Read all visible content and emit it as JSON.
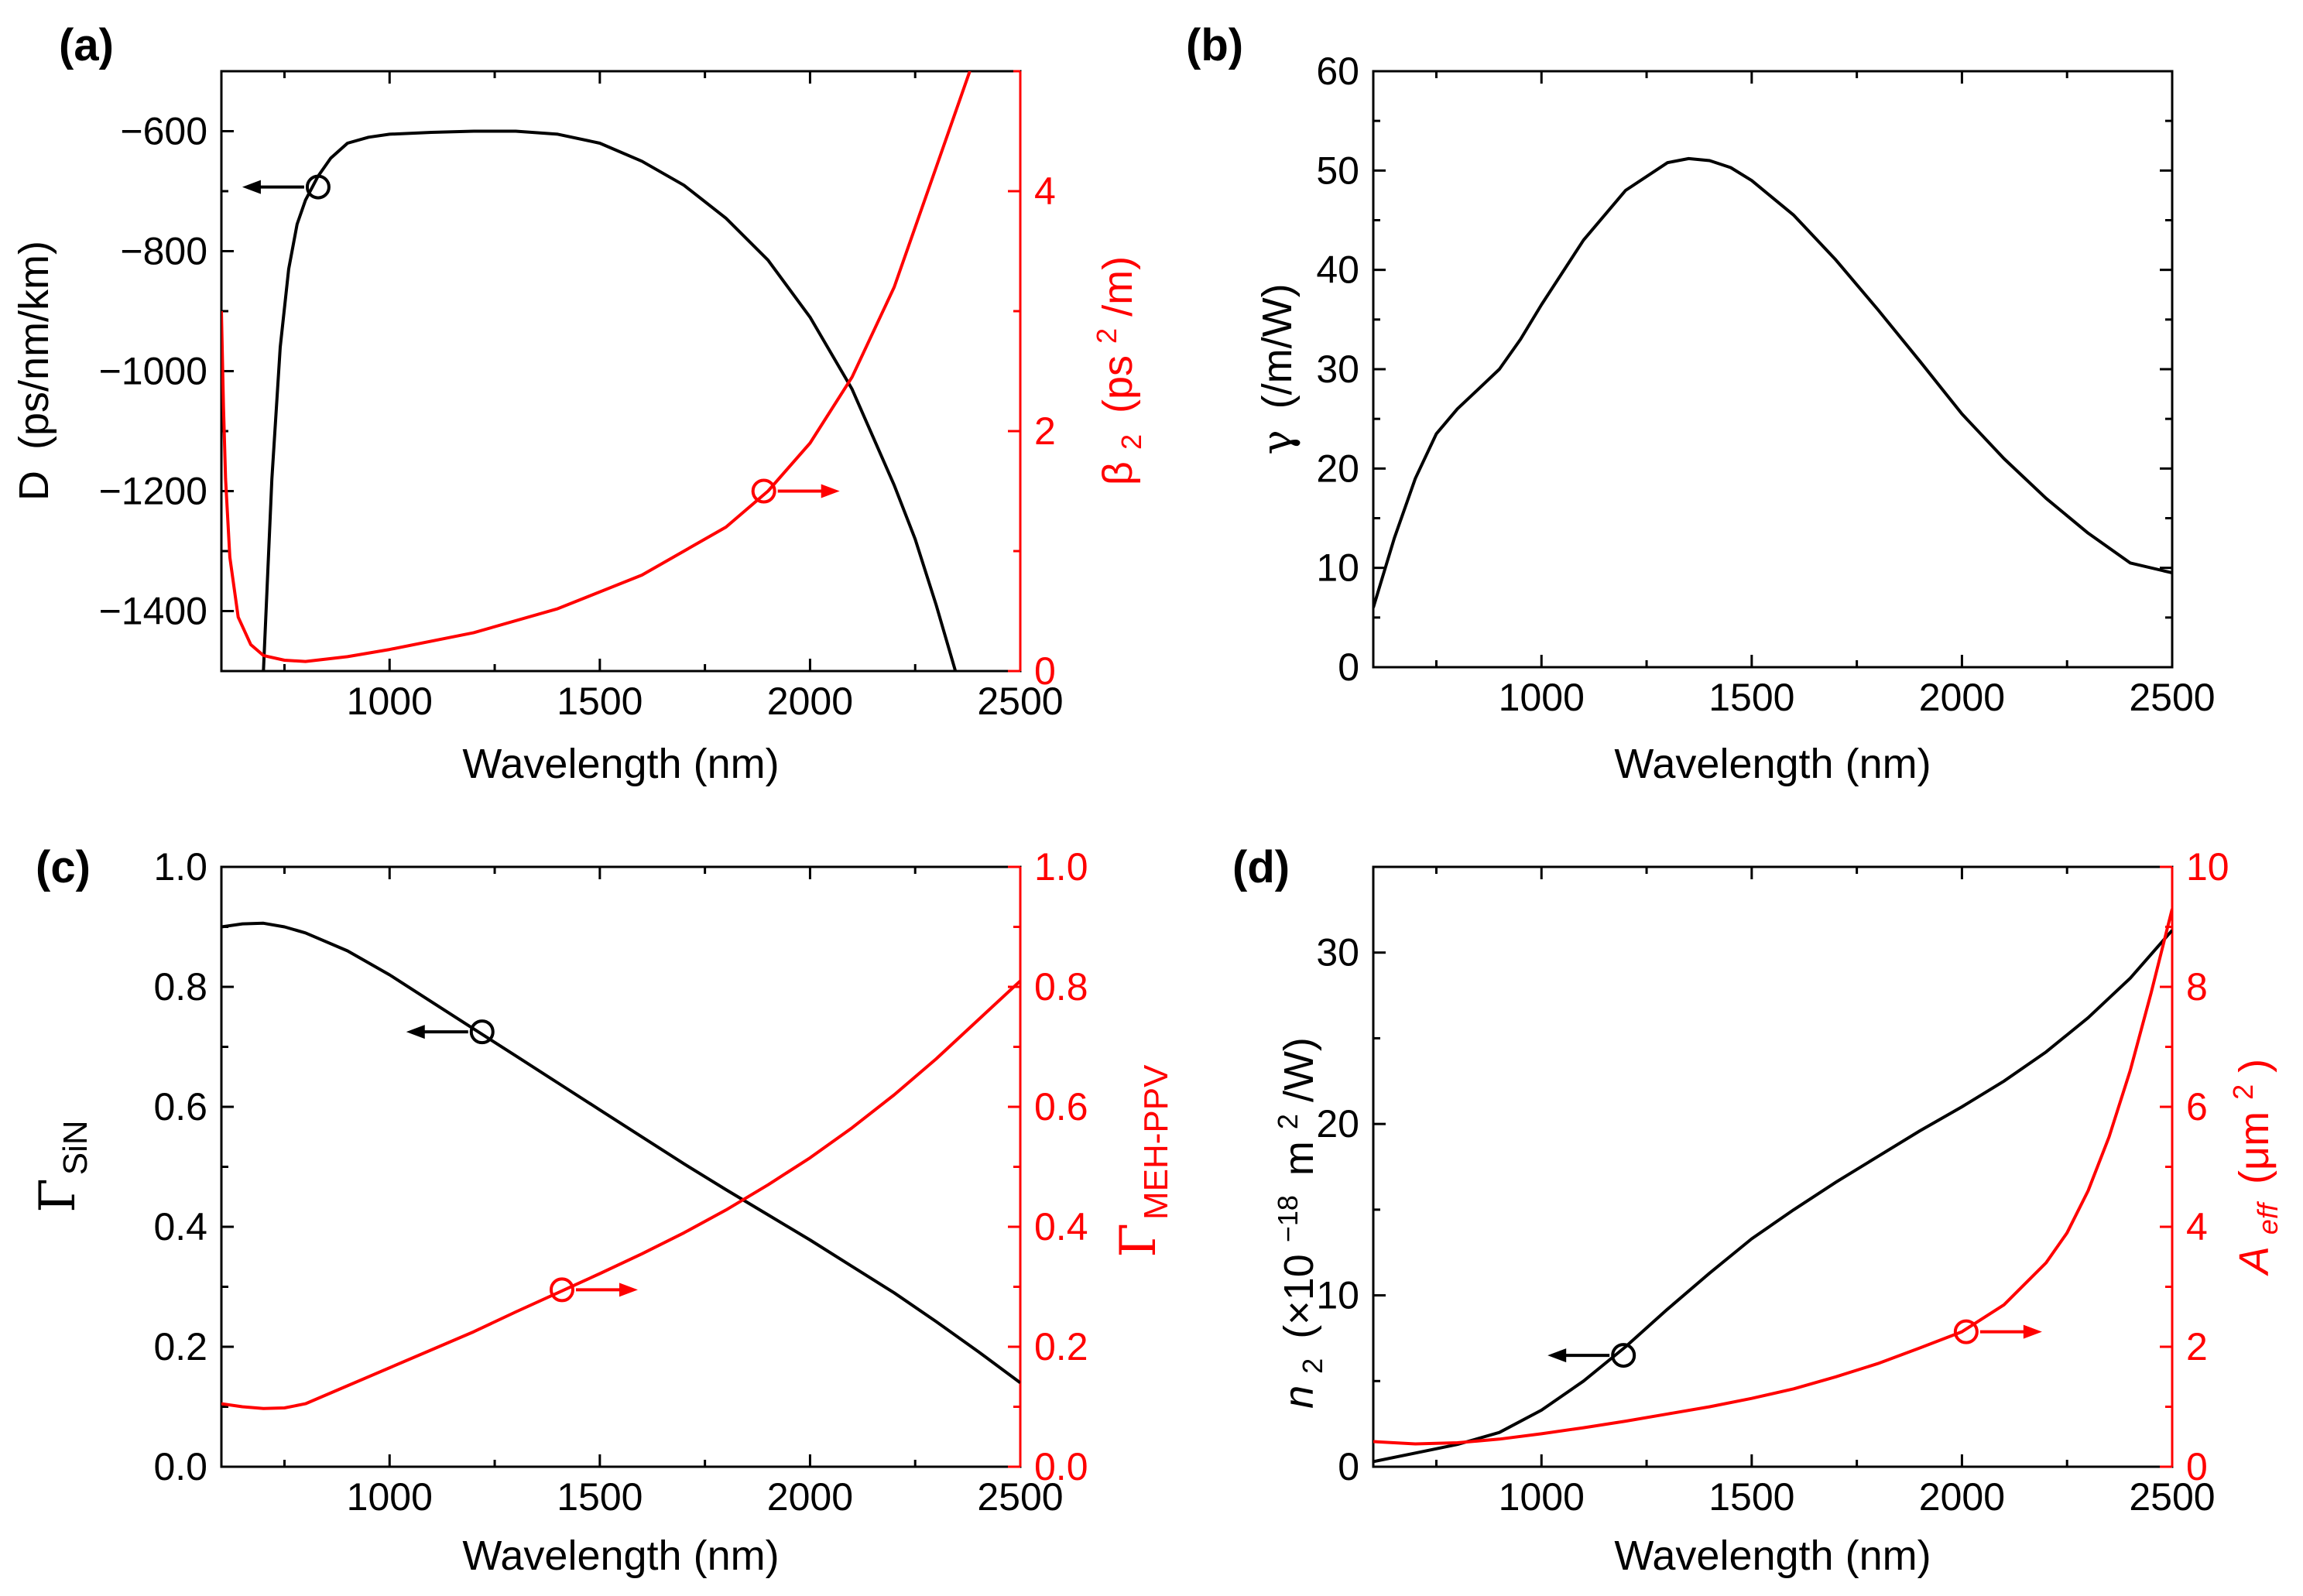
{
  "colors": {
    "primary": "#000000",
    "secondary": "#ff0000"
  },
  "chart_data": [
    {
      "id": "a",
      "panel_label": "(a)",
      "type": "line",
      "xlabel": "Wavelength (nm)",
      "xlim": [
        600,
        2500
      ],
      "xticks": [
        1000,
        1500,
        2000,
        2500
      ],
      "ylabel": "D (ps/nm/km)",
      "ylabel_main": "D",
      "ylabel_rest": "(ps/nm/km)",
      "ylim": [
        -1500,
        -500
      ],
      "yticks": [
        -1400,
        -1200,
        -1000,
        -800,
        -600
      ],
      "ytick_labels": [
        "−1400",
        "−1200",
        "−1000",
        "−800",
        "−600"
      ],
      "y2label": "β₂ (ps²/m)",
      "y2label_main": "β",
      "y2label_sub": "2",
      "y2label_mid": "(ps",
      "y2label_sup": "2",
      "y2label_end": "/m)",
      "y2lim": [
        0,
        5
      ],
      "y2ticks": [
        0,
        2,
        4
      ],
      "series": [
        {
          "name": "D",
          "axis": "left",
          "color": "#000000",
          "x": [
            700,
            720,
            740,
            760,
            780,
            800,
            830,
            860,
            900,
            950,
            1000,
            1100,
            1200,
            1300,
            1400,
            1500,
            1600,
            1700,
            1800,
            1900,
            2000,
            2100,
            2200,
            2250,
            2300,
            2350
          ],
          "y": [
            -1500,
            -1180,
            -960,
            -830,
            -755,
            -715,
            -675,
            -645,
            -620,
            -610,
            -605,
            -602,
            -600,
            -600,
            -605,
            -620,
            -650,
            -690,
            -745,
            -815,
            -910,
            -1030,
            -1190,
            -1280,
            -1390,
            -1510
          ],
          "marker_x": 830,
          "marker_y": -693,
          "arrow": "left"
        },
        {
          "name": "β2",
          "axis": "right",
          "color": "#ff0000",
          "x": [
            600,
            605,
            610,
            620,
            640,
            670,
            700,
            750,
            800,
            900,
            1000,
            1200,
            1400,
            1600,
            1800,
            1900,
            2000,
            2100,
            2200,
            2300,
            2380
          ],
          "y": [
            3.0,
            2.2,
            1.6,
            0.95,
            0.45,
            0.22,
            0.13,
            0.09,
            0.08,
            0.12,
            0.18,
            0.32,
            0.52,
            0.8,
            1.2,
            1.5,
            1.9,
            2.45,
            3.2,
            4.2,
            5.0
          ],
          "marker_x": 1890,
          "marker_y": 1.5,
          "arrow": "right"
        }
      ]
    },
    {
      "id": "b",
      "panel_label": "(b)",
      "type": "line",
      "xlabel": "Wavelength (nm)",
      "xlim": [
        600,
        2500
      ],
      "xticks": [
        1000,
        1500,
        2000,
        2500
      ],
      "ylabel": "γ (/m/W)",
      "ylabel_main": "γ",
      "ylabel_rest": "(/m/W)",
      "ylim": [
        0,
        60
      ],
      "yticks": [
        0,
        10,
        20,
        30,
        40,
        50,
        60
      ],
      "series": [
        {
          "name": "γ",
          "axis": "left",
          "color": "#000000",
          "x": [
            600,
            650,
            700,
            750,
            800,
            850,
            900,
            950,
            1000,
            1100,
            1200,
            1300,
            1350,
            1400,
            1450,
            1500,
            1600,
            1700,
            1800,
            1900,
            2000,
            2100,
            2200,
            2300,
            2400,
            2500
          ],
          "y": [
            6,
            13,
            19,
            23.5,
            26,
            28,
            30,
            33,
            36.5,
            43,
            48,
            50.8,
            51.2,
            51,
            50.3,
            49,
            45.5,
            41,
            36,
            30.8,
            25.5,
            21,
            17,
            13.5,
            10.5,
            9.5
          ]
        }
      ]
    },
    {
      "id": "c",
      "panel_label": "(c)",
      "type": "line",
      "xlabel": "Wavelength (nm)",
      "xlim": [
        600,
        2500
      ],
      "xticks": [
        1000,
        1500,
        2000,
        2500
      ],
      "ylabel": "ΓSiN",
      "ylabel_main": "Γ",
      "ylabel_sub": "SiN",
      "ylim": [
        0,
        1
      ],
      "yticks": [
        0,
        0.2,
        0.4,
        0.6,
        0.8,
        1.0
      ],
      "ytick_labels": [
        "0.0",
        "0.2",
        "0.4",
        "0.6",
        "0.8",
        "1.0"
      ],
      "y2label": "ΓMEH-PPV",
      "y2label_main": "Γ",
      "y2label_sub": "MEH-PPV",
      "y2lim": [
        0,
        1
      ],
      "y2ticks": [
        0,
        0.2,
        0.4,
        0.6,
        0.8,
        1.0
      ],
      "y2tick_labels": [
        "0.0",
        "0.2",
        "0.4",
        "0.6",
        "0.8",
        "1.0"
      ],
      "series": [
        {
          "name": "ΓSiN",
          "axis": "left",
          "color": "#000000",
          "x": [
            600,
            650,
            700,
            750,
            800,
            900,
            1000,
            1100,
            1200,
            1300,
            1400,
            1500,
            1600,
            1700,
            1800,
            1900,
            2000,
            2100,
            2200,
            2300,
            2400,
            2500
          ],
          "y": [
            0.9,
            0.905,
            0.906,
            0.9,
            0.89,
            0.86,
            0.82,
            0.775,
            0.73,
            0.685,
            0.64,
            0.595,
            0.55,
            0.505,
            0.462,
            0.42,
            0.378,
            0.334,
            0.29,
            0.242,
            0.192,
            0.14
          ],
          "marker_x": 1220,
          "marker_y": 0.725,
          "arrow": "left"
        },
        {
          "name": "ΓMEH-PPV",
          "axis": "right",
          "color": "#ff0000",
          "x": [
            600,
            650,
            700,
            750,
            800,
            900,
            1000,
            1100,
            1200,
            1300,
            1400,
            1500,
            1600,
            1700,
            1800,
            1900,
            2000,
            2100,
            2200,
            2300,
            2400,
            2500
          ],
          "y": [
            0.105,
            0.1,
            0.097,
            0.098,
            0.105,
            0.135,
            0.165,
            0.195,
            0.225,
            0.258,
            0.29,
            0.322,
            0.355,
            0.39,
            0.428,
            0.47,
            0.515,
            0.565,
            0.62,
            0.68,
            0.745,
            0.81
          ],
          "marker_x": 1410,
          "marker_y": 0.295,
          "arrow": "right"
        }
      ]
    },
    {
      "id": "d",
      "panel_label": "(d)",
      "type": "line",
      "xlabel": "Wavelength (nm)",
      "xlim": [
        600,
        2500
      ],
      "xticks": [
        1000,
        1500,
        2000,
        2500
      ],
      "ylabel": "n̄₂ (×10⁻¹⁸ m²/W)",
      "ylabel_main": "n",
      "ylabel_sub": "2",
      "ylabel_mid": "(×10",
      "ylabel_sup": "−18",
      "ylabel_mid2": "m",
      "ylabel_sup2": "2",
      "ylabel_end": "/W)",
      "ylim": [
        0,
        35
      ],
      "yticks": [
        0,
        10,
        20,
        30
      ],
      "y2label": "Aeff (μm²)",
      "y2label_main": "A",
      "y2label_sub": "eff",
      "y2label_mid": "(μm",
      "y2label_sup": "2",
      "y2label_end": ")",
      "y2lim": [
        0,
        10
      ],
      "y2ticks": [
        0,
        2,
        4,
        6,
        8,
        10
      ],
      "series": [
        {
          "name": "n̄₂",
          "axis": "left",
          "color": "#000000",
          "x": [
            600,
            700,
            800,
            900,
            1000,
            1100,
            1200,
            1300,
            1400,
            1500,
            1600,
            1700,
            1800,
            1900,
            2000,
            2100,
            2200,
            2300,
            2400,
            2500
          ],
          "y": [
            0.3,
            0.8,
            1.3,
            2.0,
            3.3,
            5.0,
            7.0,
            9.2,
            11.3,
            13.3,
            15.0,
            16.6,
            18.1,
            19.6,
            21.0,
            22.5,
            24.2,
            26.2,
            28.5,
            31.3
          ],
          "marker_x": 1195,
          "marker_y": 6.5,
          "arrow": "left"
        },
        {
          "name": "Aeff",
          "axis": "right",
          "color": "#ff0000",
          "x": [
            600,
            700,
            800,
            900,
            1000,
            1100,
            1200,
            1300,
            1400,
            1500,
            1600,
            1700,
            1800,
            1900,
            2000,
            2100,
            2200,
            2250,
            2300,
            2350,
            2400,
            2450,
            2500
          ],
          "y": [
            0.42,
            0.38,
            0.4,
            0.46,
            0.55,
            0.65,
            0.76,
            0.88,
            1.0,
            1.14,
            1.3,
            1.5,
            1.72,
            1.98,
            2.25,
            2.7,
            3.4,
            3.9,
            4.6,
            5.5,
            6.6,
            7.9,
            9.3
          ],
          "marker_x": 2010,
          "marker_y": 2.25,
          "arrow": "right"
        }
      ]
    }
  ]
}
